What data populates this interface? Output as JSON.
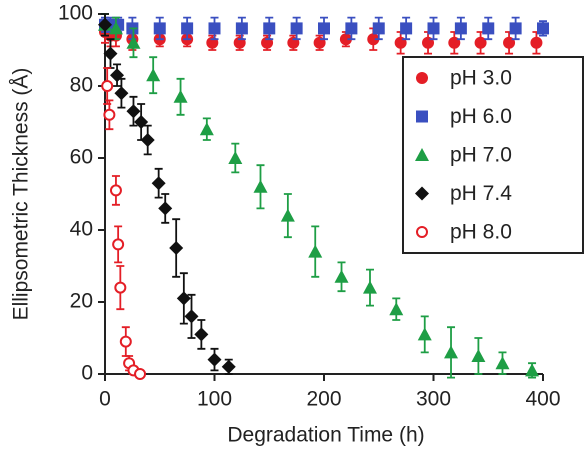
{
  "chart_data": {
    "type": "scatter",
    "x_label": "Degradation Time (h)",
    "y_label": "Ellipsometric Thickness (Å)",
    "xlim": [
      0,
      400
    ],
    "xticks": [
      0,
      100,
      200,
      300,
      400
    ],
    "ylim": [
      0,
      100
    ],
    "yticks": [
      0,
      20,
      40,
      60,
      80,
      100
    ],
    "legend": "upper right",
    "series": [
      {
        "name": "pH 3.0",
        "color": "#e41e26",
        "marker": "circle",
        "x": [
          0,
          5,
          10,
          25,
          50,
          75,
          98,
          123,
          148,
          172,
          196,
          220,
          245,
          270,
          295,
          319,
          343,
          369,
          394
        ],
        "values": [
          95,
          94,
          94,
          93,
          93,
          93,
          92,
          92,
          92,
          92,
          92,
          93,
          93,
          92,
          92,
          92,
          92,
          92,
          92
        ],
        "errors": [
          3,
          3,
          3,
          3,
          2,
          2,
          2,
          2,
          2,
          2,
          2,
          2,
          3,
          3,
          3,
          3,
          3,
          3,
          3
        ]
      },
      {
        "name": "pH 6.0",
        "color": "#3a4fc0",
        "marker": "square",
        "x": [
          0,
          5,
          12,
          25,
          50,
          75,
          100,
          125,
          150,
          175,
          200,
          225,
          250,
          275,
          300,
          325,
          350,
          375,
          400
        ],
        "values": [
          97,
          97,
          97,
          96,
          96,
          96,
          96,
          96,
          96,
          96,
          96,
          96,
          96,
          96,
          96,
          96,
          96,
          96,
          96
        ],
        "errors": [
          2,
          2,
          2,
          3,
          3,
          3,
          3,
          3,
          3,
          3,
          3,
          3,
          3,
          3,
          3,
          3,
          3,
          3,
          2
        ]
      },
      {
        "name": "pH 7.0",
        "color": "#1e9e45",
        "marker": "triangle",
        "x": [
          0,
          10,
          26,
          44,
          69,
          93,
          119,
          142,
          167,
          192,
          216,
          242,
          266,
          292,
          316,
          341,
          363,
          390
        ],
        "values": [
          97,
          96,
          92,
          83,
          77,
          68,
          60,
          52,
          44,
          34,
          27,
          24,
          18,
          11,
          6,
          5,
          3,
          1
        ],
        "errors": [
          3,
          3,
          4,
          5,
          5,
          3,
          4,
          6,
          6,
          7,
          4,
          5,
          3,
          5,
          7,
          5,
          3,
          2
        ]
      },
      {
        "name": "pH 7.4",
        "color": "#111111",
        "marker": "diamond",
        "x": [
          0,
          5,
          11,
          15,
          26,
          33,
          39,
          49,
          55,
          65,
          72,
          79,
          88,
          100,
          113
        ],
        "values": [
          97,
          89,
          83,
          78,
          73,
          70,
          65,
          53,
          46,
          35,
          21,
          16,
          11,
          4,
          2
        ],
        "errors": [
          3,
          4,
          3,
          4,
          4,
          5,
          4,
          4,
          4,
          8,
          7,
          6,
          4,
          3,
          2
        ]
      },
      {
        "name": "pH 8.0",
        "color": "#e41e26",
        "marker": "open-circle",
        "x": [
          2,
          4,
          10,
          12,
          14,
          19,
          22,
          26,
          32
        ],
        "values": [
          80,
          72,
          51,
          36,
          24,
          9,
          3,
          1,
          0
        ],
        "errors": [
          5,
          4,
          4,
          5,
          6,
          4,
          2,
          1,
          1
        ]
      }
    ]
  }
}
